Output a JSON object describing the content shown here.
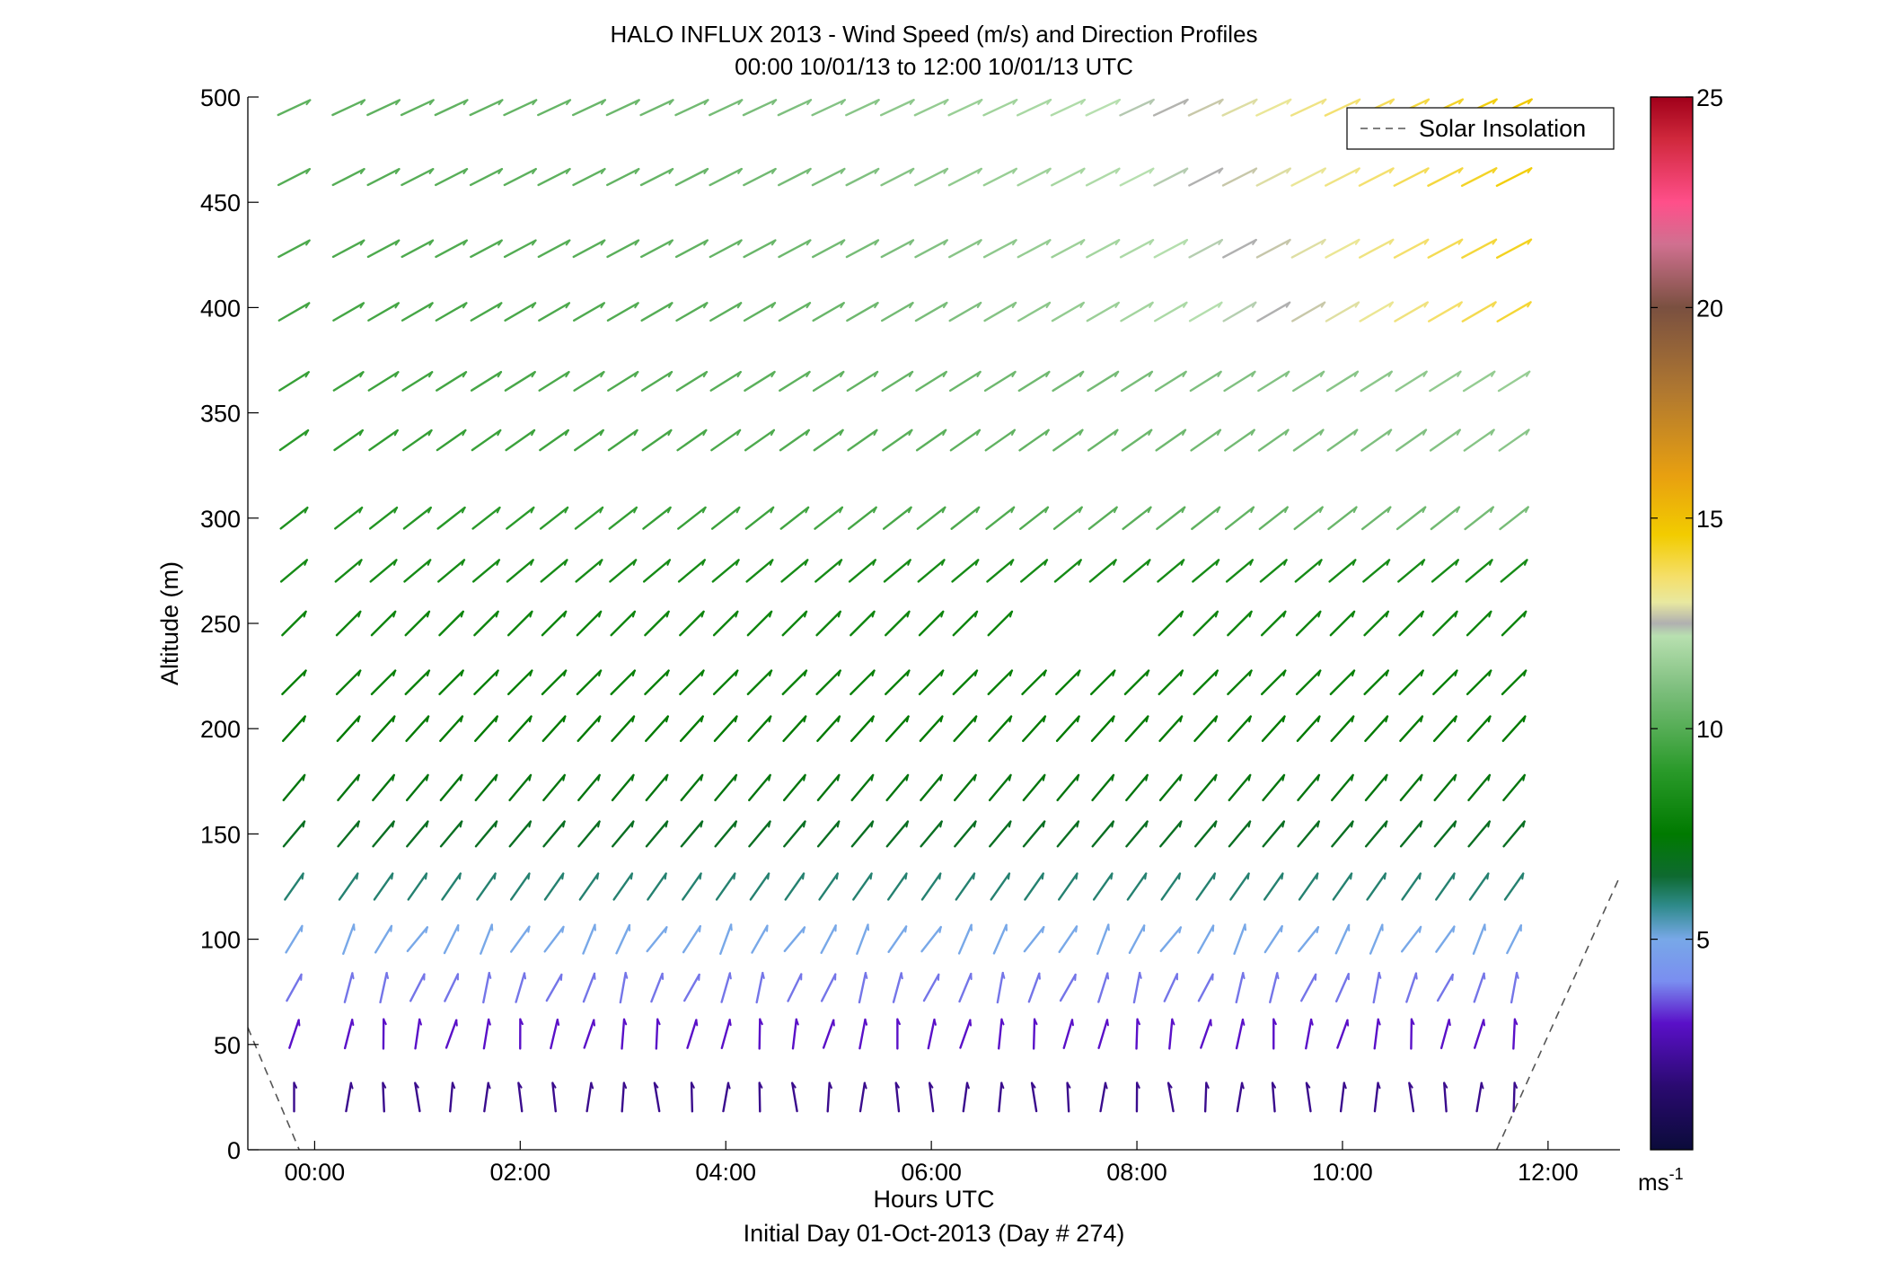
{
  "chart_data": {
    "type": "quiver",
    "title": "HALO INFLUX 2013 - Wind Speed (m/s) and Direction Profiles",
    "subtitle": "00:00 10/01/13 to 12:00 10/01/13  UTC",
    "xlabel": "Hours UTC",
    "xlabel2": "Initial Day 01-Oct-2013 (Day # 274)",
    "ylabel": "Altitude (m)",
    "xlim": [
      -0.65,
      12.7
    ],
    "ylim": [
      0,
      500
    ],
    "x_ticks": [
      0,
      2,
      4,
      6,
      8,
      10,
      12
    ],
    "x_tick_labels": [
      "00:00",
      "02:00",
      "04:00",
      "06:00",
      "08:00",
      "10:00",
      "12:00"
    ],
    "y_ticks": [
      0,
      50,
      100,
      150,
      200,
      250,
      300,
      350,
      400,
      450,
      500
    ],
    "y_tick_labels": [
      "0",
      "50",
      "100",
      "150",
      "200",
      "250",
      "300",
      "350",
      "400",
      "450",
      "500"
    ],
    "colorbar": {
      "range": [
        0,
        25
      ],
      "ticks": [
        5,
        10,
        15,
        20,
        25
      ],
      "tick_labels": [
        "5",
        "10",
        "15",
        "20",
        "25"
      ],
      "unit_base": "ms",
      "unit_exp": "-1",
      "stops": [
        [
          0,
          "#0b0b3a"
        ],
        [
          1.5,
          "#2a0a70"
        ],
        [
          3,
          "#5a10c8"
        ],
        [
          4,
          "#7a8ef0"
        ],
        [
          5,
          "#78a8e8"
        ],
        [
          5.8,
          "#2e8a8a"
        ],
        [
          6.5,
          "#0e6a30"
        ],
        [
          7.5,
          "#007a00"
        ],
        [
          9,
          "#2a9a2a"
        ],
        [
          11,
          "#80c080"
        ],
        [
          12.2,
          "#b8e0b0"
        ],
        [
          12.5,
          "#b0b0b0"
        ],
        [
          13,
          "#e8e8a0"
        ],
        [
          13.6,
          "#f5df6a"
        ],
        [
          14.6,
          "#f2cc00"
        ],
        [
          16,
          "#e8a010"
        ],
        [
          18,
          "#b07830"
        ],
        [
          20,
          "#7a5040"
        ],
        [
          21.5,
          "#d07090"
        ],
        [
          22.5,
          "#ff4f8a"
        ],
        [
          24,
          "#d0283c"
        ],
        [
          25,
          "#a0001a"
        ]
      ]
    },
    "quiver": {
      "times": [
        -0.2,
        0.33,
        0.67,
        1.0,
        1.33,
        1.67,
        2.0,
        2.33,
        2.67,
        3.0,
        3.33,
        3.67,
        4.0,
        4.33,
        4.67,
        5.0,
        5.33,
        5.67,
        6.0,
        6.33,
        6.67,
        7.0,
        7.33,
        7.67,
        8.0,
        8.33,
        8.67,
        9.0,
        9.33,
        9.67,
        10.0,
        10.33,
        10.67,
        11.0,
        11.33,
        11.67
      ],
      "altitudes": [
        25,
        55,
        77,
        100,
        125,
        150,
        172,
        200,
        222,
        250,
        275,
        300,
        337,
        365,
        398,
        428,
        462,
        495
      ],
      "missing": [
        [
          6.96,
          250
        ],
        [
          7.33,
          250
        ],
        [
          7.67,
          250
        ],
        [
          8.0,
          250
        ]
      ],
      "wind_profiles": [
        {
          "alt": 25,
          "speed": 2.0,
          "dir_deg": 0
        },
        {
          "alt": 55,
          "speed": 3.0,
          "dir_deg": 10
        },
        {
          "alt": 77,
          "speed": 3.8,
          "dir_deg": 20
        },
        {
          "alt": 100,
          "speed": 5.0,
          "dir_deg": 30
        },
        {
          "alt": 125,
          "speed": 6.0,
          "dir_deg": 35
        },
        {
          "alt": 150,
          "speed": 6.8,
          "dir_deg": 40
        },
        {
          "alt": 172,
          "speed": 7.2,
          "dir_deg": 40
        },
        {
          "alt": 200,
          "speed": 7.5,
          "dir_deg": 42
        },
        {
          "alt": 222,
          "speed": 7.8,
          "dir_deg": 45
        },
        {
          "alt": 250,
          "speed": 8.0,
          "dir_deg": 45
        },
        {
          "alt": 275,
          "speed": 8.3,
          "dir_deg": 50
        },
        {
          "alt": 300,
          "speed": 8.6,
          "dir_deg": 52
        },
        {
          "alt": 337,
          "speed": 9.0,
          "dir_deg": 55
        },
        {
          "alt": 365,
          "speed": 9.3,
          "dir_deg": 58
        },
        {
          "alt": 398,
          "speed": 9.6,
          "dir_deg": 60
        },
        {
          "alt": 428,
          "speed": 9.8,
          "dir_deg": 62
        },
        {
          "alt": 462,
          "speed": 10.0,
          "dir_deg": 63
        },
        {
          "alt": 495,
          "speed": 10.2,
          "dir_deg": 65
        }
      ]
    },
    "series": [
      {
        "name": "Solar Insolation",
        "style": "dashed",
        "color": "#555555",
        "segments": [
          {
            "x": [
              -0.65,
              -0.15
            ],
            "y": [
              58,
              0
            ]
          },
          {
            "x": [
              11.5,
              12.7
            ],
            "y": [
              0,
              130
            ]
          }
        ]
      }
    ],
    "legend": {
      "position": "top-right",
      "entries": [
        "Solar Insolation"
      ]
    },
    "grid": false
  }
}
